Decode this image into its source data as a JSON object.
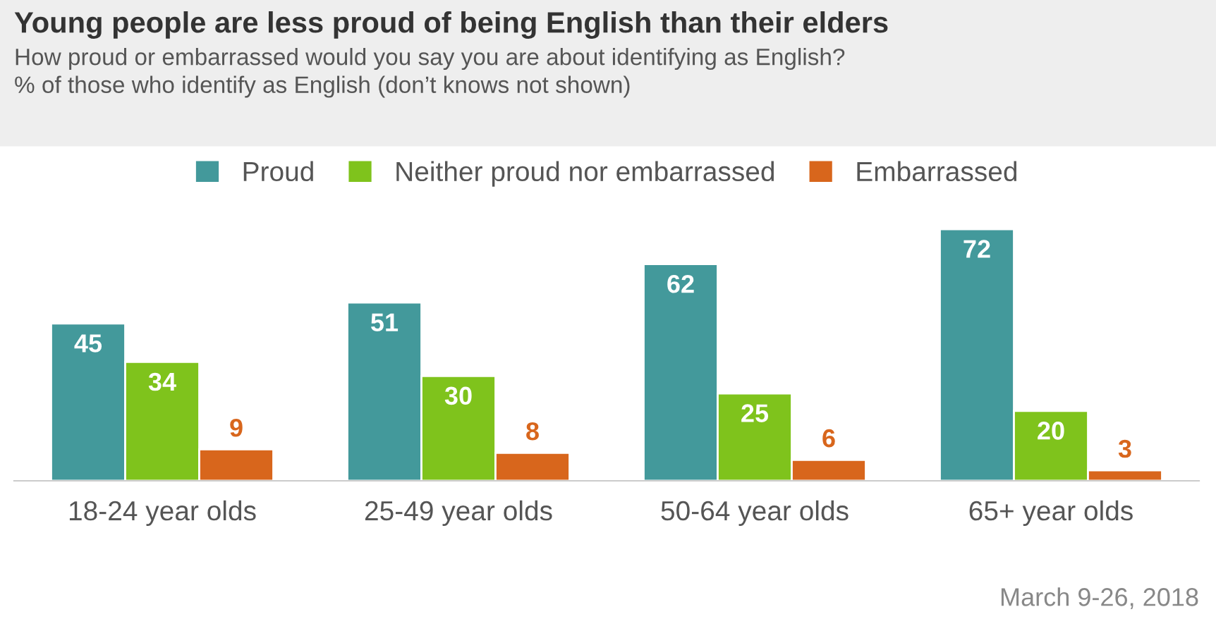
{
  "chart_data": {
    "type": "bar",
    "title": "Young people are less proud of being English than their elders",
    "subtitle": "How proud or embarrassed would you say you are about identifying as English?\n% of those who identify as English (don’t knows not shown)",
    "categories": [
      "18-24 year olds",
      "25-49 year olds",
      "50-64 year olds",
      "65+ year olds"
    ],
    "series": [
      {
        "name": "Proud",
        "color": "#43999b",
        "values": [
          45,
          51,
          62,
          72
        ]
      },
      {
        "name": "Neither proud nor embarrassed",
        "color": "#7fc31c",
        "values": [
          34,
          30,
          25,
          20
        ]
      },
      {
        "name": "Embarrassed",
        "color": "#d8661c",
        "values": [
          9,
          8,
          6,
          3
        ]
      }
    ],
    "data_labels": true,
    "legend": "top",
    "grid": false,
    "annotations": [
      "March 9-26, 2018"
    ]
  }
}
